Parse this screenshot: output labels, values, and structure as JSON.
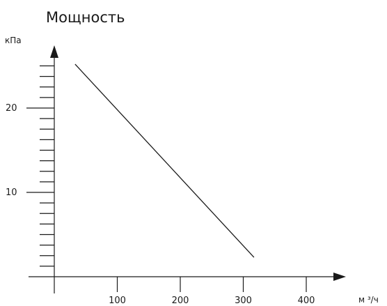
{
  "chart_data": {
    "type": "line",
    "title": "Мощность",
    "ylabel": "кПа",
    "xlabel": "м ³/ч",
    "xlim": [
      0,
      400
    ],
    "ylim": [
      0,
      25
    ],
    "x_ticks": [
      {
        "value": 100,
        "label": "100"
      },
      {
        "value": 200,
        "label": "200"
      },
      {
        "value": 300,
        "label": "300"
      },
      {
        "value": 400,
        "label": "400"
      }
    ],
    "y_ticks": [
      {
        "value": 10,
        "label": "10"
      },
      {
        "value": 20,
        "label": "20"
      }
    ],
    "y_minor_ticks": [
      1.25,
      2.5,
      3.75,
      5,
      6.25,
      7.5,
      8.75,
      11.25,
      12.5,
      13.75,
      15,
      16.25,
      17.5,
      18.75,
      21.25,
      22.5,
      23.75,
      25
    ],
    "series": [
      {
        "x": [
          33,
          317
        ],
        "y": [
          25.2,
          2.3
        ]
      }
    ],
    "grid": false,
    "color": "#1a1a1a"
  }
}
